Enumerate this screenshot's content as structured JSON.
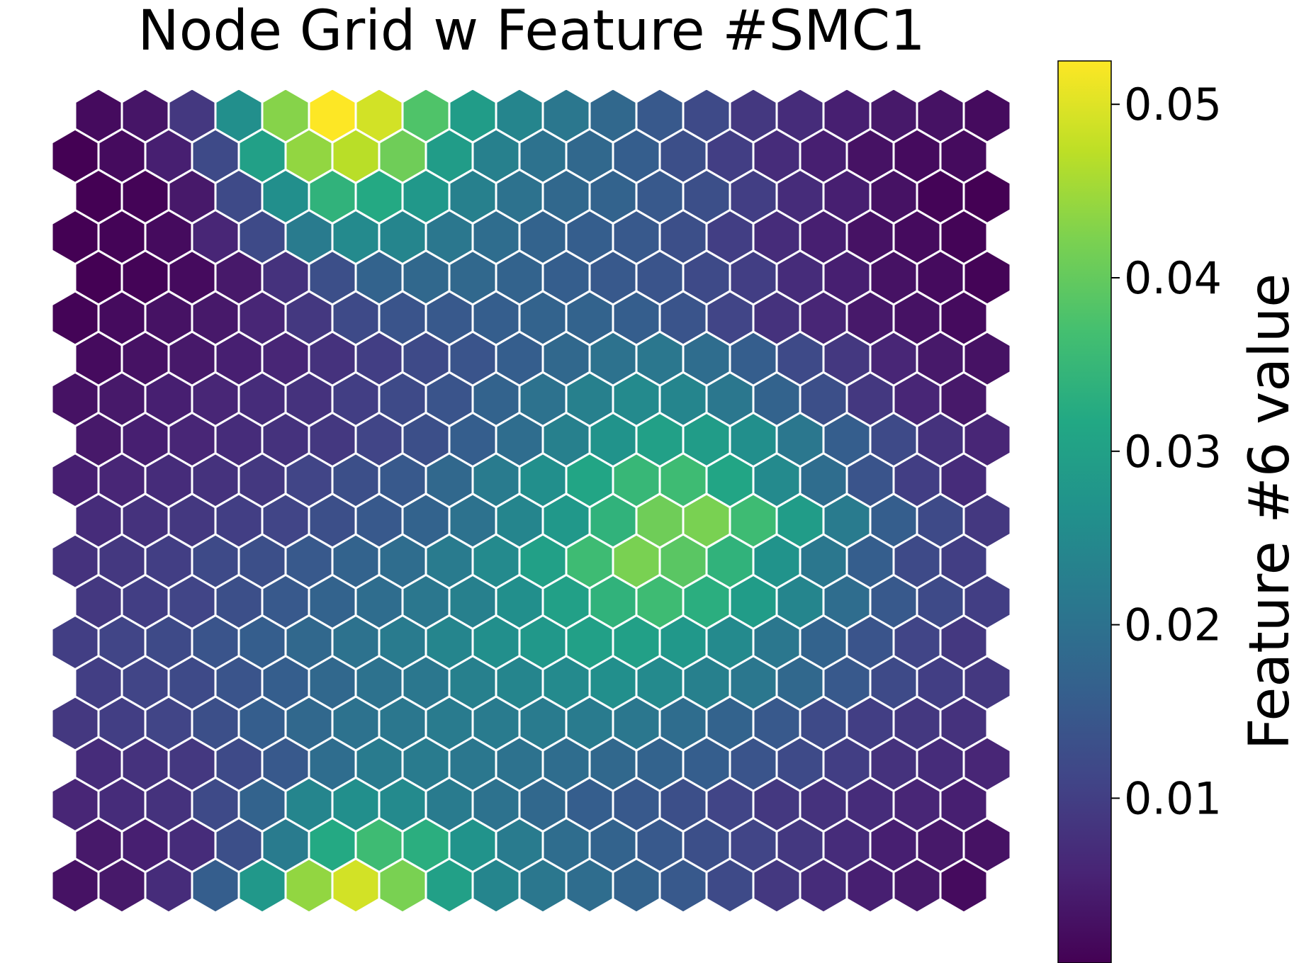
{
  "chart_data": {
    "type": "heatmap",
    "grid": "hexagonal",
    "title": "Node Grid w Feature #SMC1",
    "colormap": "viridis",
    "colorbar": {
      "label": "Feature #6 value",
      "min": 0.0005,
      "max": 0.0525,
      "ticks": [
        0.01,
        0.02,
        0.03,
        0.04,
        0.05
      ],
      "tick_labels": [
        "0.01",
        "0.02",
        "0.03",
        "0.04",
        "0.05"
      ],
      "position": "right"
    },
    "rows": 20,
    "cols": 20,
    "row_order": "top-to-bottom",
    "values": [
      [
        0.002,
        0.0035,
        0.009,
        0.026,
        0.043,
        0.0525,
        0.049,
        0.038,
        0.029,
        0.024,
        0.021,
        0.018,
        0.015,
        0.012,
        0.009,
        0.007,
        0.005,
        0.004,
        0.003,
        0.002
      ],
      [
        0.0005,
        0.002,
        0.005,
        0.012,
        0.03,
        0.044,
        0.047,
        0.041,
        0.029,
        0.023,
        0.02,
        0.018,
        0.016,
        0.013,
        0.01,
        0.007,
        0.005,
        0.003,
        0.002,
        0.002
      ],
      [
        0.0005,
        0.001,
        0.004,
        0.012,
        0.026,
        0.034,
        0.032,
        0.028,
        0.023,
        0.02,
        0.018,
        0.017,
        0.015,
        0.013,
        0.01,
        0.007,
        0.005,
        0.003,
        0.001,
        0.0005
      ],
      [
        0.0005,
        0.001,
        0.002,
        0.006,
        0.012,
        0.022,
        0.025,
        0.024,
        0.021,
        0.019,
        0.017,
        0.016,
        0.015,
        0.013,
        0.01,
        0.007,
        0.005,
        0.003,
        0.002,
        0.001
      ],
      [
        0.0005,
        0.001,
        0.002,
        0.004,
        0.008,
        0.013,
        0.017,
        0.018,
        0.018,
        0.017,
        0.016,
        0.015,
        0.014,
        0.012,
        0.01,
        0.007,
        0.005,
        0.003,
        0.002,
        0.001
      ],
      [
        0.001,
        0.002,
        0.003,
        0.004,
        0.006,
        0.009,
        0.012,
        0.014,
        0.015,
        0.016,
        0.017,
        0.017,
        0.016,
        0.014,
        0.011,
        0.008,
        0.006,
        0.004,
        0.003,
        0.002
      ],
      [
        0.002,
        0.003,
        0.004,
        0.005,
        0.006,
        0.008,
        0.01,
        0.012,
        0.014,
        0.016,
        0.018,
        0.02,
        0.021,
        0.019,
        0.016,
        0.012,
        0.009,
        0.006,
        0.004,
        0.003
      ],
      [
        0.003,
        0.004,
        0.005,
        0.006,
        0.007,
        0.008,
        0.01,
        0.012,
        0.014,
        0.017,
        0.02,
        0.023,
        0.025,
        0.024,
        0.021,
        0.017,
        0.013,
        0.009,
        0.006,
        0.004
      ],
      [
        0.004,
        0.005,
        0.006,
        0.007,
        0.008,
        0.009,
        0.011,
        0.013,
        0.016,
        0.019,
        0.023,
        0.027,
        0.03,
        0.029,
        0.026,
        0.021,
        0.016,
        0.012,
        0.008,
        0.006
      ],
      [
        0.005,
        0.006,
        0.007,
        0.008,
        0.009,
        0.011,
        0.013,
        0.015,
        0.018,
        0.022,
        0.026,
        0.031,
        0.035,
        0.036,
        0.031,
        0.025,
        0.019,
        0.014,
        0.01,
        0.007
      ],
      [
        0.007,
        0.008,
        0.009,
        0.01,
        0.011,
        0.013,
        0.015,
        0.017,
        0.02,
        0.024,
        0.028,
        0.034,
        0.041,
        0.042,
        0.036,
        0.029,
        0.022,
        0.016,
        0.012,
        0.009
      ],
      [
        0.008,
        0.009,
        0.01,
        0.012,
        0.013,
        0.015,
        0.017,
        0.019,
        0.022,
        0.025,
        0.03,
        0.036,
        0.042,
        0.039,
        0.034,
        0.027,
        0.021,
        0.016,
        0.012,
        0.01
      ],
      [
        0.009,
        0.01,
        0.011,
        0.013,
        0.015,
        0.017,
        0.019,
        0.021,
        0.023,
        0.026,
        0.03,
        0.034,
        0.036,
        0.033,
        0.029,
        0.024,
        0.019,
        0.015,
        0.012,
        0.01
      ],
      [
        0.01,
        0.011,
        0.012,
        0.014,
        0.016,
        0.018,
        0.02,
        0.022,
        0.024,
        0.026,
        0.028,
        0.03,
        0.03,
        0.028,
        0.025,
        0.021,
        0.017,
        0.014,
        0.011,
        0.009
      ],
      [
        0.01,
        0.011,
        0.012,
        0.014,
        0.016,
        0.018,
        0.02,
        0.021,
        0.023,
        0.024,
        0.025,
        0.026,
        0.025,
        0.023,
        0.021,
        0.018,
        0.015,
        0.012,
        0.01,
        0.009
      ],
      [
        0.009,
        0.01,
        0.011,
        0.013,
        0.016,
        0.018,
        0.02,
        0.021,
        0.022,
        0.022,
        0.022,
        0.022,
        0.021,
        0.019,
        0.017,
        0.015,
        0.012,
        0.01,
        0.009,
        0.008
      ],
      [
        0.007,
        0.008,
        0.009,
        0.012,
        0.015,
        0.019,
        0.022,
        0.022,
        0.021,
        0.02,
        0.019,
        0.018,
        0.017,
        0.016,
        0.014,
        0.012,
        0.01,
        0.008,
        0.007,
        0.006
      ],
      [
        0.006,
        0.007,
        0.008,
        0.012,
        0.017,
        0.024,
        0.026,
        0.025,
        0.022,
        0.02,
        0.018,
        0.016,
        0.015,
        0.013,
        0.011,
        0.009,
        0.008,
        0.007,
        0.006,
        0.005
      ],
      [
        0.004,
        0.005,
        0.007,
        0.013,
        0.022,
        0.032,
        0.036,
        0.033,
        0.027,
        0.022,
        0.019,
        0.017,
        0.015,
        0.013,
        0.011,
        0.009,
        0.007,
        0.005,
        0.004,
        0.003
      ],
      [
        0.003,
        0.004,
        0.007,
        0.016,
        0.028,
        0.044,
        0.049,
        0.042,
        0.03,
        0.024,
        0.021,
        0.019,
        0.017,
        0.015,
        0.012,
        0.009,
        0.007,
        0.005,
        0.004,
        0.002
      ]
    ]
  }
}
